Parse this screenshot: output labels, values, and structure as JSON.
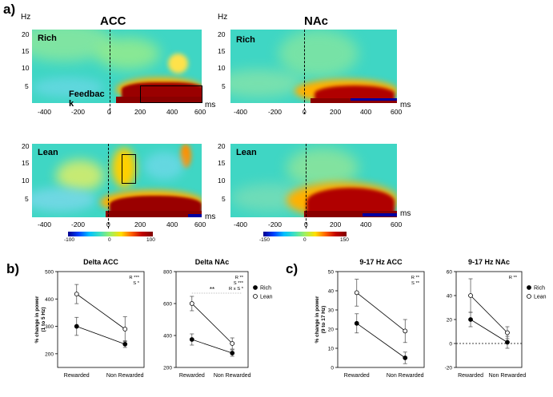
{
  "panel_labels": {
    "a": "a)",
    "b": "b)",
    "c": "c)"
  },
  "heatmaps": {
    "acc_title": "ACC",
    "nac_title": "NAc",
    "hz_label": "Hz",
    "ms_label": "ms",
    "y_ticks": [
      "20",
      "15",
      "10",
      "5"
    ],
    "x_ticks": [
      "-400",
      "-200",
      "0",
      "200",
      "400",
      "600"
    ],
    "rich_label": "Rich",
    "lean_label": "Lean",
    "feedback_label_1": "Feedbac",
    "feedback_label_2": "k",
    "colorbar_acc": [
      "-100",
      "0",
      "100"
    ],
    "colorbar_nac": [
      "-150",
      "0",
      "150"
    ],
    "colors": {
      "background": "#40d8c0",
      "hot": "#9a0000",
      "warm": "#ffd000",
      "cold": "#0000a0"
    }
  },
  "chart_data": [
    {
      "type": "line",
      "title": "Delta ACC",
      "ylabel": "% change in power (1 to 5 Hz)",
      "ylabel_line1": "% change in power",
      "ylabel_line2": "(1 to 5 Hz)",
      "categories": [
        "Rewarded",
        "Non Rewarded"
      ],
      "ylim": [
        150,
        500
      ],
      "yticks": [
        200,
        300,
        400,
        500
      ],
      "series": [
        {
          "name": "Rich",
          "values": [
            300,
            235
          ],
          "errors": [
            33,
            12
          ],
          "marker": "filled"
        },
        {
          "name": "Lean",
          "values": [
            418,
            290
          ],
          "errors": [
            35,
            45
          ],
          "marker": "open"
        }
      ],
      "stats": [
        "R ***",
        "S *"
      ],
      "legend": null
    },
    {
      "type": "line",
      "title": "Delta NAc",
      "ylabel": "",
      "categories": [
        "Rewarded",
        "Non Rewarded"
      ],
      "ylim": [
        200,
        800
      ],
      "yticks": [
        200,
        400,
        600,
        800
      ],
      "series": [
        {
          "name": "Rich",
          "values": [
            375,
            290
          ],
          "errors": [
            35,
            20
          ],
          "marker": "filled"
        },
        {
          "name": "Lean",
          "values": [
            600,
            350
          ],
          "errors": [
            45,
            35
          ],
          "marker": "open"
        }
      ],
      "stats": [
        "R **",
        "S ***",
        "R x S *"
      ],
      "annotation": "**",
      "legend": [
        "Rich",
        "Lean"
      ]
    },
    {
      "type": "line",
      "title": "9-17 Hz ACC",
      "ylabel": "% change in power (9 to 17 Hz)",
      "ylabel_line1": "% change in power",
      "ylabel_line2": "(9 to 17 Hz)",
      "categories": [
        "Rewarded",
        "Non Rewarded"
      ],
      "ylim": [
        0,
        50
      ],
      "yticks": [
        0,
        10,
        20,
        30,
        40,
        50
      ],
      "series": [
        {
          "name": "Rich",
          "values": [
            23,
            5
          ],
          "errors": [
            5,
            3
          ],
          "marker": "filled"
        },
        {
          "name": "Lean",
          "values": [
            39,
            19
          ],
          "errors": [
            7,
            6
          ],
          "marker": "open"
        }
      ],
      "stats": [
        "R **",
        "S **"
      ],
      "legend": null
    },
    {
      "type": "line",
      "title": "9-17 Hz NAc",
      "ylabel": "",
      "categories": [
        "Rewarded",
        "Non Rewarded"
      ],
      "ylim": [
        -20,
        60
      ],
      "yticks": [
        -20,
        0,
        20,
        40,
        60
      ],
      "series": [
        {
          "name": "Rich",
          "values": [
            20,
            1
          ],
          "errors": [
            6,
            5
          ],
          "marker": "filled"
        },
        {
          "name": "Lean",
          "values": [
            40,
            9
          ],
          "errors": [
            14,
            5
          ],
          "marker": "open"
        }
      ],
      "stats": [
        "R **"
      ],
      "legend": [
        "Rich",
        "Lean"
      ]
    }
  ]
}
